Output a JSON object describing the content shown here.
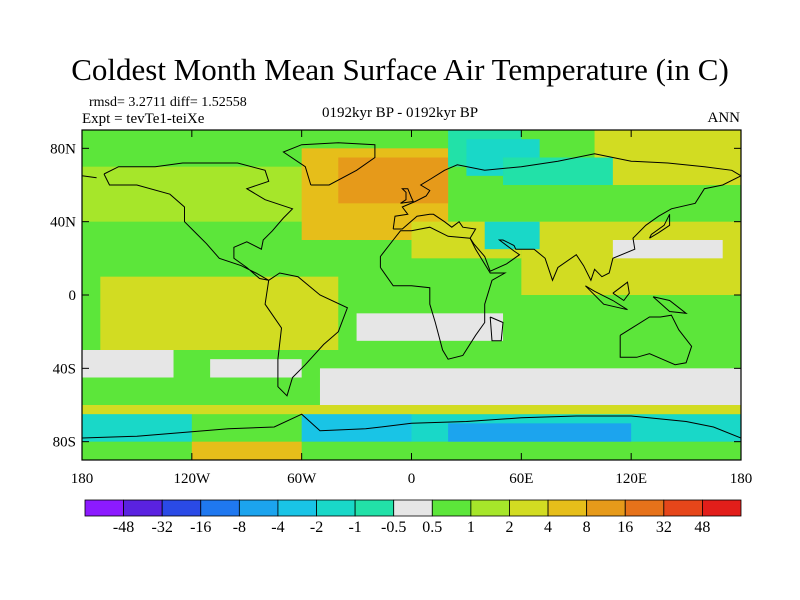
{
  "title": "Coldest Month Mean Surface Air Temperature (in C)",
  "stats": {
    "rmsd_line": "rmsd= 3.2711 diff= 1.52558",
    "expt_line": "Expt = tevTe1-teiXe",
    "period": "0192kyr BP - 0192kyr BP",
    "season": "ANN"
  },
  "map": {
    "projection": "cylindrical equidistant",
    "lon_range": [
      -180,
      180
    ],
    "lat_range": [
      -90,
      90
    ],
    "lon_ticks": [
      {
        "value": -180,
        "label": "180"
      },
      {
        "value": -120,
        "label": "120W"
      },
      {
        "value": -60,
        "label": "60W"
      },
      {
        "value": 0,
        "label": "0"
      },
      {
        "value": 60,
        "label": "60E"
      },
      {
        "value": 120,
        "label": "120E"
      },
      {
        "value": 180,
        "label": "180"
      }
    ],
    "lat_ticks": [
      {
        "value": 80,
        "label": "80N"
      },
      {
        "value": 40,
        "label": "40N"
      },
      {
        "value": 0,
        "label": "0"
      },
      {
        "value": -40,
        "label": "40S"
      },
      {
        "value": -80,
        "label": "80S"
      }
    ],
    "regions": [
      {
        "level": 1,
        "lon": [
          -180,
          180
        ],
        "lat": [
          -90,
          90
        ]
      },
      {
        "level": 2,
        "lon": [
          -180,
          -30
        ],
        "lat": [
          40,
          70
        ]
      },
      {
        "level": 3,
        "lon": [
          -170,
          -40
        ],
        "lat": [
          -30,
          10
        ]
      },
      {
        "level": 3,
        "lon": [
          60,
          180
        ],
        "lat": [
          0,
          40
        ]
      },
      {
        "level": 4,
        "lon": [
          -60,
          20
        ],
        "lat": [
          30,
          80
        ]
      },
      {
        "level": 5,
        "lon": [
          -40,
          20
        ],
        "lat": [
          50,
          75
        ]
      },
      {
        "level": 3,
        "lon": [
          0,
          60
        ],
        "lat": [
          20,
          40
        ]
      },
      {
        "level": 3,
        "lon": [
          100,
          180
        ],
        "lat": [
          60,
          90
        ]
      },
      {
        "level": -1,
        "lon": [
          20,
          60
        ],
        "lat": [
          70,
          90
        ]
      },
      {
        "level": -2,
        "lon": [
          30,
          70
        ],
        "lat": [
          65,
          85
        ]
      },
      {
        "level": -1,
        "lon": [
          50,
          110
        ],
        "lat": [
          60,
          75
        ]
      },
      {
        "level": -2,
        "lon": [
          40,
          70
        ],
        "lat": [
          25,
          40
        ]
      },
      {
        "level": 0,
        "lon": [
          -180,
          -130
        ],
        "lat": [
          -45,
          -30
        ]
      },
      {
        "level": 0,
        "lon": [
          -110,
          -60
        ],
        "lat": [
          -45,
          -35
        ]
      },
      {
        "level": 0,
        "lon": [
          -50,
          180
        ],
        "lat": [
          -60,
          -40
        ]
      },
      {
        "level": 0,
        "lon": [
          -30,
          50
        ],
        "lat": [
          -25,
          -10
        ]
      },
      {
        "level": 0,
        "lon": [
          110,
          170
        ],
        "lat": [
          20,
          30
        ]
      },
      {
        "level": 4,
        "lon": [
          -120,
          -60
        ],
        "lat": [
          -90,
          -80
        ]
      },
      {
        "level": -2,
        "lon": [
          -180,
          -120
        ],
        "lat": [
          -80,
          -60
        ]
      },
      {
        "level": -3,
        "lon": [
          -60,
          0
        ],
        "lat": [
          -80,
          -60
        ]
      },
      {
        "level": -2,
        "lon": [
          0,
          180
        ],
        "lat": [
          -80,
          -65
        ]
      },
      {
        "level": -4,
        "lon": [
          20,
          120
        ],
        "lat": [
          -80,
          -70
        ]
      },
      {
        "level": 3,
        "lon": [
          -180,
          180
        ],
        "lat": [
          -65,
          -60
        ]
      }
    ]
  },
  "colorbar": {
    "colors": [
      "#8c1aff",
      "#5a22e0",
      "#2a4ae6",
      "#1f78f0",
      "#1ca4ee",
      "#19c4e6",
      "#19d8c8",
      "#22e1a8",
      "#e6e6e6",
      "#5ce63a",
      "#a6e62a",
      "#d2dc22",
      "#e6be1a",
      "#e69a1a",
      "#e6721a",
      "#e6461a",
      "#e21e1a"
    ],
    "labels": [
      "-48",
      "-32",
      "-16",
      "-8",
      "-4",
      "-2",
      "-1",
      "-0.5",
      "0.5",
      "1",
      "2",
      "4",
      "8",
      "16",
      "32",
      "48"
    ]
  }
}
